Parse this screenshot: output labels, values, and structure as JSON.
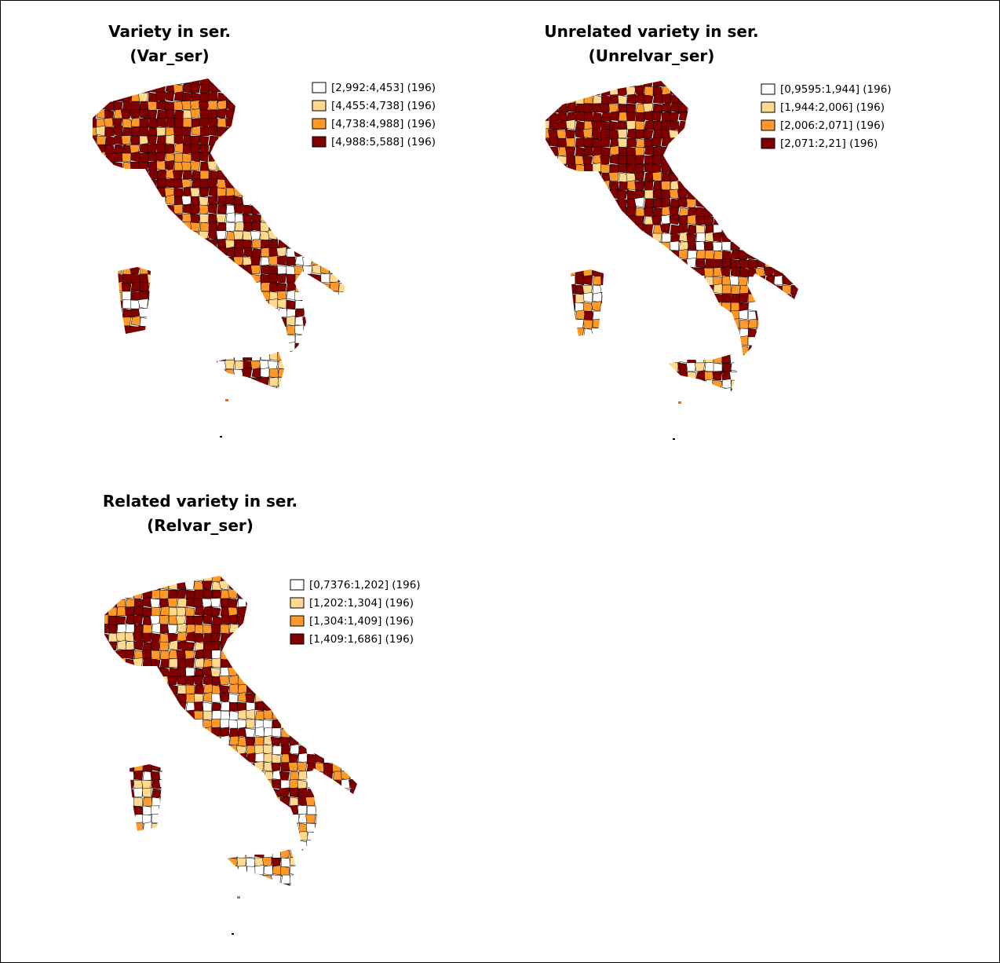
{
  "maps": [
    {
      "title": "Variety in ser.",
      "subtitle": "(Var_ser)",
      "legend": [
        "[2,992:4,453] (196)",
        "[4,455:4,738] (196)",
        "[4,738:4,988] (196)",
        "[4,988:5,588] (196)"
      ]
    },
    {
      "title": "Unrelated variety in ser.",
      "subtitle": "(Unrelvar_ser)",
      "legend": [
        "[0,9595:1,944] (196)",
        "[1,944:2,006] (196)",
        "[2,006:2,071] (196)",
        "[2,071:2,21] (196)"
      ]
    },
    {
      "title": "Related variety in ser.",
      "subtitle": "(Relvar_ser)",
      "legend": [
        "[0,7376:1,202] (196)",
        "[1,202:1,304] (196)",
        "[1,304:1,409] (196)",
        "[1,409:1,686] (196)"
      ]
    }
  ]
}
